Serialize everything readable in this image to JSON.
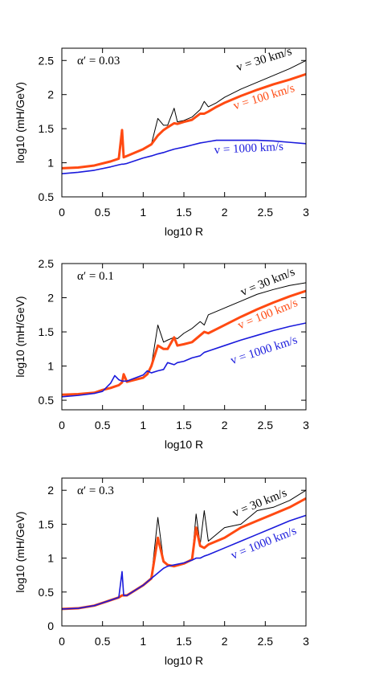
{
  "chart_data": [
    {
      "type": "line",
      "annotation": "α′ = 0.03",
      "xlabel": "log10 R",
      "ylabel": "log10 (mH/GeV)",
      "xlim": [
        0,
        3
      ],
      "xticks": [
        0,
        0.5,
        1,
        1.5,
        2,
        2.5,
        3
      ],
      "ylim": [
        0.5,
        2.68
      ],
      "yticks": [
        0.5,
        1,
        1.5,
        2,
        2.5
      ],
      "x": [
        0,
        0.2,
        0.4,
        0.6,
        0.7,
        0.74,
        0.76,
        0.8,
        1,
        1.1,
        1.18,
        1.25,
        1.3,
        1.38,
        1.42,
        1.5,
        1.6,
        1.7,
        1.75,
        1.8,
        1.9,
        2,
        2.2,
        2.4,
        2.6,
        2.8,
        3
      ],
      "series": [
        {
          "name": "v = 30 km/s",
          "color": "#000000",
          "values": [
            0.92,
            0.93,
            0.96,
            1.02,
            1.06,
            1.48,
            1.08,
            1.1,
            1.2,
            1.27,
            1.65,
            1.55,
            1.55,
            1.8,
            1.6,
            1.62,
            1.67,
            1.78,
            1.9,
            1.82,
            1.88,
            1.96,
            2.08,
            2.18,
            2.28,
            2.38,
            2.5
          ]
        },
        {
          "name": "v = 100 km/s",
          "color": "#ff4a12",
          "values": [
            0.92,
            0.93,
            0.96,
            1.02,
            1.06,
            1.48,
            1.08,
            1.1,
            1.2,
            1.27,
            1.4,
            1.48,
            1.52,
            1.58,
            1.57,
            1.6,
            1.63,
            1.72,
            1.72,
            1.75,
            1.82,
            1.88,
            1.98,
            2.07,
            2.15,
            2.22,
            2.3
          ]
        },
        {
          "name": "v = 1000 km/s",
          "color": "#1a1adc",
          "values": [
            0.84,
            0.86,
            0.89,
            0.94,
            0.97,
            0.98,
            0.98,
            0.99,
            1.07,
            1.1,
            1.13,
            1.15,
            1.17,
            1.2,
            1.21,
            1.23,
            1.26,
            1.29,
            1.3,
            1.31,
            1.33,
            1.33,
            1.33,
            1.33,
            1.32,
            1.3,
            1.28
          ]
        }
      ]
    },
    {
      "type": "line",
      "annotation": "α′ = 0.1",
      "xlabel": "log10 R",
      "ylabel": "log10 (mH/GeV)",
      "xlim": [
        0,
        3
      ],
      "xticks": [
        0,
        0.5,
        1,
        1.5,
        2,
        2.5,
        3
      ],
      "ylim": [
        0.36,
        2.5
      ],
      "yticks": [
        0.5,
        1,
        1.5,
        2,
        2.5
      ],
      "x": [
        0,
        0.2,
        0.4,
        0.5,
        0.6,
        0.65,
        0.7,
        0.74,
        0.76,
        0.8,
        1,
        1.05,
        1.1,
        1.18,
        1.25,
        1.3,
        1.38,
        1.42,
        1.5,
        1.6,
        1.7,
        1.75,
        1.8,
        2,
        2.2,
        2.4,
        2.6,
        2.8,
        3
      ],
      "series": [
        {
          "name": "v = 30 km/s",
          "color": "#000000",
          "values": [
            0.58,
            0.59,
            0.61,
            0.65,
            0.68,
            0.7,
            0.72,
            0.76,
            0.88,
            0.77,
            0.83,
            0.88,
            1.0,
            1.6,
            1.35,
            1.38,
            1.42,
            1.4,
            1.48,
            1.55,
            1.65,
            1.6,
            1.75,
            1.85,
            1.95,
            2.05,
            2.12,
            2.18,
            2.22
          ]
        },
        {
          "name": "v = 100 km/s",
          "color": "#ff4a12",
          "values": [
            0.58,
            0.59,
            0.61,
            0.65,
            0.68,
            0.7,
            0.72,
            0.76,
            0.88,
            0.77,
            0.83,
            0.88,
            1.0,
            1.3,
            1.25,
            1.25,
            1.42,
            1.3,
            1.32,
            1.35,
            1.45,
            1.5,
            1.48,
            1.6,
            1.72,
            1.83,
            1.93,
            2.02,
            2.1
          ]
        },
        {
          "name": "v = 1000 km/s",
          "color": "#1a1adc",
          "values": [
            0.55,
            0.57,
            0.6,
            0.63,
            0.75,
            0.86,
            0.8,
            0.78,
            0.78,
            0.78,
            0.87,
            0.93,
            0.9,
            0.93,
            0.95,
            1.05,
            1.02,
            1.05,
            1.07,
            1.12,
            1.15,
            1.2,
            1.22,
            1.3,
            1.38,
            1.45,
            1.52,
            1.58,
            1.63
          ]
        }
      ]
    },
    {
      "type": "line",
      "annotation": "α′ = 0.3",
      "xlabel": "log10 R",
      "ylabel": "log10 (mH/GeV)",
      "xlim": [
        0,
        3
      ],
      "xticks": [
        0,
        0.5,
        1,
        1.5,
        2,
        2.5,
        3
      ],
      "ylim": [
        0,
        2.18
      ],
      "yticks": [
        0,
        0.5,
        1,
        1.5,
        2
      ],
      "x": [
        0,
        0.2,
        0.4,
        0.6,
        0.7,
        0.74,
        0.76,
        0.8,
        1,
        1.1,
        1.18,
        1.25,
        1.3,
        1.38,
        1.5,
        1.6,
        1.65,
        1.7,
        1.75,
        1.8,
        2,
        2.2,
        2.4,
        2.6,
        2.8,
        3
      ],
      "series": [
        {
          "name": "v = 30 km/s",
          "color": "#000000",
          "values": [
            0.25,
            0.26,
            0.3,
            0.38,
            0.42,
            0.45,
            0.45,
            0.45,
            0.6,
            0.7,
            1.6,
            0.95,
            0.9,
            0.88,
            0.92,
            0.98,
            1.65,
            1.2,
            1.7,
            1.25,
            1.45,
            1.5,
            1.7,
            1.75,
            1.85,
            2.0
          ]
        },
        {
          "color": "#ff4a12",
          "values": [
            0.25,
            0.26,
            0.3,
            0.38,
            0.42,
            0.45,
            0.45,
            0.45,
            0.6,
            0.7,
            1.3,
            0.95,
            0.9,
            0.88,
            0.92,
            0.98,
            1.45,
            1.18,
            1.15,
            1.2,
            1.3,
            1.45,
            1.55,
            1.65,
            1.75,
            1.88
          ]
        },
        {
          "name": "v = 1000 km/s",
          "color": "#1a1adc",
          "values": [
            0.25,
            0.26,
            0.3,
            0.38,
            0.42,
            0.8,
            0.45,
            0.45,
            0.6,
            0.7,
            0.78,
            0.85,
            0.88,
            0.9,
            0.93,
            0.97,
            1.0,
            1.0,
            1.03,
            1.05,
            1.15,
            1.25,
            1.35,
            1.45,
            1.55,
            1.63
          ]
        }
      ]
    }
  ]
}
